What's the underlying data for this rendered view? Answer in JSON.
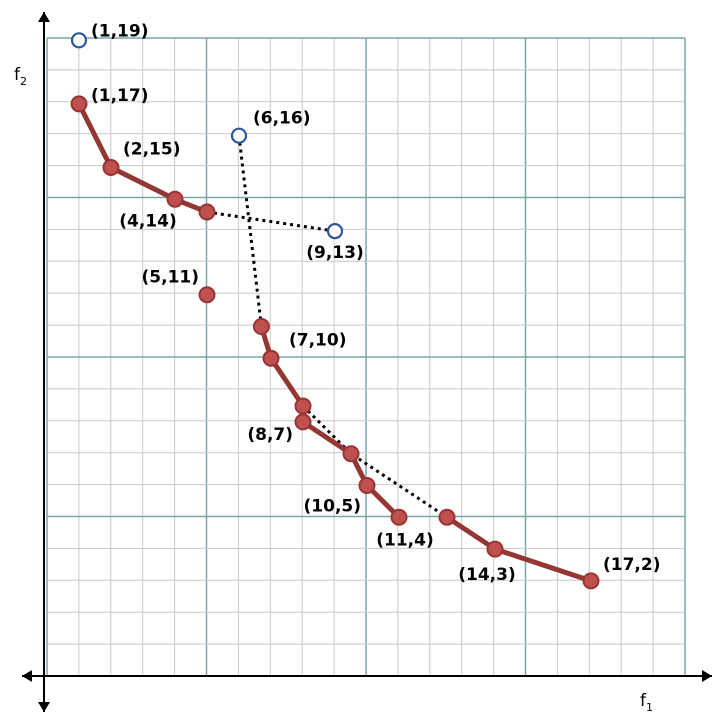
{
  "chart_data": {
    "type": "scatter",
    "xlabel": {
      "main": "f",
      "sub": "1"
    },
    "ylabel": {
      "main": "f",
      "sub": "2"
    },
    "xlim": [
      -1,
      19
    ],
    "ylim": [
      -1,
      20
    ],
    "grid": true,
    "colors": {
      "solid": "#c0504d",
      "solid_stroke": "#943634",
      "hollow_stroke": "#2f5597",
      "minor_grid": "#c8c8c8",
      "major_grid": "#7aa5a5"
    },
    "curves": [
      {
        "points": [
          [
            1,
            17
          ],
          [
            2,
            15
          ],
          [
            4,
            14
          ],
          [
            5,
            13.6
          ]
        ]
      },
      {
        "points": [
          [
            6.7,
            10
          ],
          [
            7,
            9
          ],
          [
            8,
            7.5
          ]
        ]
      },
      {
        "points": [
          [
            8,
            7
          ],
          [
            9.5,
            6
          ],
          [
            10,
            5
          ],
          [
            11,
            4
          ]
        ]
      },
      {
        "points": [
          [
            12.5,
            4
          ],
          [
            14,
            3
          ],
          [
            17,
            2
          ]
        ]
      }
    ],
    "dotted": [
      {
        "points": [
          [
            5,
            13.6
          ],
          [
            9,
            13
          ]
        ]
      },
      {
        "points": [
          [
            6,
            16
          ],
          [
            6.7,
            10
          ]
        ]
      },
      {
        "points": [
          [
            8,
            7.5
          ],
          [
            9.5,
            6
          ],
          [
            12.5,
            4
          ]
        ]
      }
    ],
    "solid_points": [
      [
        1,
        17
      ],
      [
        2,
        15
      ],
      [
        4,
        14
      ],
      [
        5,
        13.6
      ],
      [
        5,
        11
      ],
      [
        6.7,
        10
      ],
      [
        7,
        9
      ],
      [
        8,
        7.5
      ],
      [
        8,
        7
      ],
      [
        9.5,
        6
      ],
      [
        10,
        5
      ],
      [
        11,
        4
      ],
      [
        12.5,
        4
      ],
      [
        14,
        3
      ],
      [
        17,
        2
      ]
    ],
    "hollow_points": [
      [
        1,
        19
      ],
      [
        6,
        16
      ],
      [
        9,
        13
      ]
    ],
    "labels": [
      {
        "text": "(1,19)",
        "x": 1,
        "y": 19,
        "anchor": "right"
      },
      {
        "text": "(1,17)",
        "x": 1,
        "y": 17,
        "anchor": "right-up"
      },
      {
        "text": "(6,16)",
        "x": 6,
        "y": 16,
        "anchor": "right-up"
      },
      {
        "text": "(2,15)",
        "x": 2,
        "y": 15,
        "anchor": "right-up"
      },
      {
        "text": "(4,14)",
        "x": 4,
        "y": 14,
        "anchor": "below-left"
      },
      {
        "text": "(9,13)",
        "x": 9,
        "y": 13,
        "anchor": "below"
      },
      {
        "text": "(5,11)",
        "x": 5,
        "y": 11,
        "anchor": "left-up"
      },
      {
        "text": "(7,10)",
        "x": 7,
        "y": 10,
        "anchor": "right-below"
      },
      {
        "text": "(8,7)",
        "x": 8,
        "y": 7,
        "anchor": "left-below"
      },
      {
        "text": "(10,5)",
        "x": 10,
        "y": 5,
        "anchor": "left-below"
      },
      {
        "text": "(11,4)",
        "x": 11,
        "y": 4,
        "anchor": "below"
      },
      {
        "text": "(14,3)",
        "x": 14,
        "y": 3,
        "anchor": "below"
      },
      {
        "text": "(17,2)",
        "x": 17,
        "y": 2,
        "anchor": "right-up"
      }
    ]
  }
}
